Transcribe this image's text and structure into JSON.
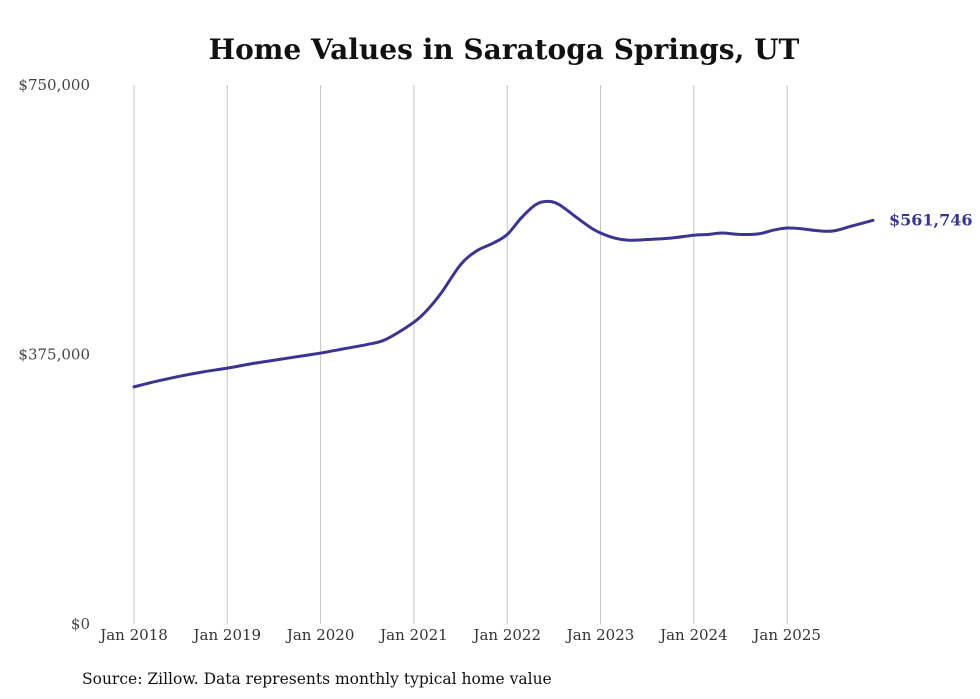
{
  "chart_data": {
    "type": "line",
    "title": "Home Values in Saratoga Springs, UT",
    "xlabel": "",
    "ylabel": "",
    "ylim": [
      0,
      750000
    ],
    "xlim": [
      2018.0,
      2025.92
    ],
    "y_ticks": [
      {
        "value": 0,
        "label": "$0"
      },
      {
        "value": 375000,
        "label": "$375,000"
      },
      {
        "value": 750000,
        "label": "$750,000"
      }
    ],
    "x_ticks": [
      {
        "value": 2018,
        "label": "Jan 2018"
      },
      {
        "value": 2019,
        "label": "Jan 2019"
      },
      {
        "value": 2020,
        "label": "Jan 2020"
      },
      {
        "value": 2021,
        "label": "Jan 2021"
      },
      {
        "value": 2022,
        "label": "Jan 2022"
      },
      {
        "value": 2023,
        "label": "Jan 2023"
      },
      {
        "value": 2024,
        "label": "Jan 2024"
      },
      {
        "value": 2025,
        "label": "Jan 2025"
      }
    ],
    "grid": "vertical",
    "legend": "none",
    "series": [
      {
        "name": "Typical home value",
        "color": "#3b3591",
        "points": [
          [
            2018.0,
            330000
          ],
          [
            2018.25,
            338000
          ],
          [
            2018.5,
            345000
          ],
          [
            2018.75,
            351000
          ],
          [
            2019.0,
            356000
          ],
          [
            2019.25,
            362000
          ],
          [
            2019.5,
            367000
          ],
          [
            2019.75,
            372000
          ],
          [
            2020.0,
            377000
          ],
          [
            2020.25,
            383000
          ],
          [
            2020.5,
            389000
          ],
          [
            2020.7,
            396000
          ],
          [
            2021.0,
            420000
          ],
          [
            2021.15,
            438000
          ],
          [
            2021.3,
            462000
          ],
          [
            2021.5,
            500000
          ],
          [
            2021.67,
            519000
          ],
          [
            2021.85,
            530000
          ],
          [
            2022.0,
            542000
          ],
          [
            2022.15,
            565000
          ],
          [
            2022.3,
            583000
          ],
          [
            2022.42,
            588000
          ],
          [
            2022.55,
            584000
          ],
          [
            2022.75,
            565000
          ],
          [
            2022.9,
            551000
          ],
          [
            2023.0,
            544000
          ],
          [
            2023.15,
            537000
          ],
          [
            2023.3,
            534000
          ],
          [
            2023.5,
            535000
          ],
          [
            2023.75,
            537000
          ],
          [
            2024.0,
            541000
          ],
          [
            2024.15,
            542000
          ],
          [
            2024.3,
            544000
          ],
          [
            2024.5,
            542000
          ],
          [
            2024.7,
            543000
          ],
          [
            2024.85,
            548000
          ],
          [
            2025.0,
            551000
          ],
          [
            2025.15,
            550000
          ],
          [
            2025.35,
            547000
          ],
          [
            2025.5,
            547000
          ],
          [
            2025.7,
            554000
          ],
          [
            2025.92,
            561746
          ]
        ]
      }
    ],
    "end_label": "$561,746",
    "source": "Source: Zillow. Data represents monthly typical home value"
  }
}
